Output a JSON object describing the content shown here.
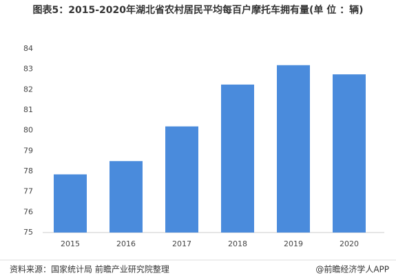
{
  "chart_data": {
    "type": "bar",
    "title": "图表5：2015-2020年湖北省农村居民平均每百户摩托车拥有量(单 位 ：辆)",
    "categories": [
      "2015",
      "2016",
      "2017",
      "2018",
      "2019",
      "2020"
    ],
    "values": [
      77.85,
      78.5,
      80.2,
      82.25,
      83.2,
      82.75
    ],
    "color": "#4a8bdc",
    "ylim": [
      75,
      84
    ],
    "yticks": [
      75,
      76,
      77,
      78,
      79,
      80,
      81,
      82,
      83,
      84
    ],
    "grid": false,
    "source": "资料来源：国家统计局 前瞻产业研究院整理",
    "credit": "@前瞻经济学人APP"
  }
}
